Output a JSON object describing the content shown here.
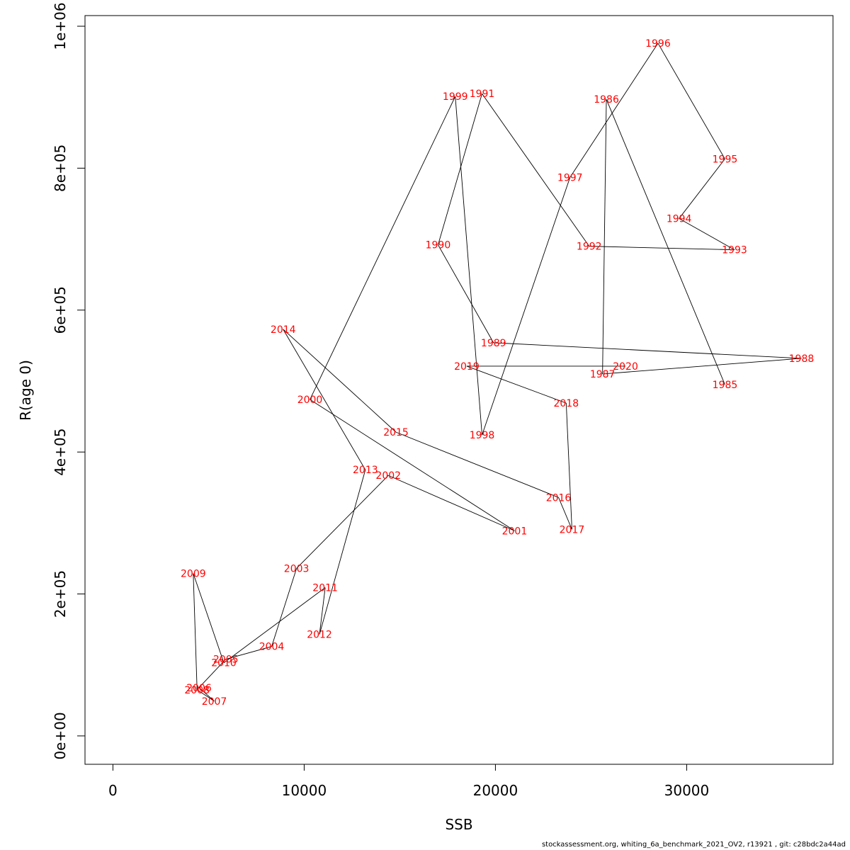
{
  "chart_data": {
    "type": "line",
    "xlabel": "SSB",
    "ylabel": "R(age 0)",
    "xlim": [
      -1460,
      37650
    ],
    "ylim": [
      -40000,
      1015000
    ],
    "xticks": [
      0,
      10000,
      20000,
      30000
    ],
    "xtick_labels": [
      "0",
      "10000",
      "20000",
      "30000"
    ],
    "yticks": [
      0,
      200000,
      400000,
      600000,
      800000,
      1000000
    ],
    "ytick_labels": [
      "0e+00",
      "2e+05",
      "4e+05",
      "6e+05",
      "8e+05",
      "1e+06"
    ],
    "grid": false,
    "line_color": "#000000",
    "label_color": "#ff0000",
    "points": [
      {
        "year": "1985",
        "x": 32000,
        "y": 495000
      },
      {
        "year": "1986",
        "x": 25800,
        "y": 897000
      },
      {
        "year": "1987",
        "x": 25600,
        "y": 510000
      },
      {
        "year": "1988",
        "x": 36000,
        "y": 532000
      },
      {
        "year": "1989",
        "x": 19900,
        "y": 554000
      },
      {
        "year": "1990",
        "x": 17000,
        "y": 692000
      },
      {
        "year": "1991",
        "x": 19300,
        "y": 905000
      },
      {
        "year": "1992",
        "x": 24900,
        "y": 690000
      },
      {
        "year": "1993",
        "x": 32500,
        "y": 685000
      },
      {
        "year": "1994",
        "x": 29600,
        "y": 729000
      },
      {
        "year": "1995",
        "x": 32000,
        "y": 813000
      },
      {
        "year": "1996",
        "x": 28500,
        "y": 976000
      },
      {
        "year": "1997",
        "x": 23900,
        "y": 787000
      },
      {
        "year": "1998",
        "x": 19300,
        "y": 424000
      },
      {
        "year": "1999",
        "x": 17900,
        "y": 901000
      },
      {
        "year": "2000",
        "x": 10300,
        "y": 474000
      },
      {
        "year": "2001",
        "x": 21000,
        "y": 289000
      },
      {
        "year": "2002",
        "x": 14400,
        "y": 367000
      },
      {
        "year": "2003",
        "x": 9600,
        "y": 236000
      },
      {
        "year": "2004",
        "x": 8300,
        "y": 126000
      },
      {
        "year": "2005",
        "x": 5900,
        "y": 108000
      },
      {
        "year": "2006",
        "x": 4500,
        "y": 68000
      },
      {
        "year": "2007",
        "x": 5300,
        "y": 49000
      },
      {
        "year": "2008",
        "x": 4400,
        "y": 65000
      },
      {
        "year": "2009",
        "x": 4200,
        "y": 229000
      },
      {
        "year": "2010",
        "x": 5800,
        "y": 103000
      },
      {
        "year": "2011",
        "x": 11100,
        "y": 209000
      },
      {
        "year": "2012",
        "x": 10800,
        "y": 143000
      },
      {
        "year": "2013",
        "x": 13200,
        "y": 375000
      },
      {
        "year": "2014",
        "x": 8900,
        "y": 573000
      },
      {
        "year": "2015",
        "x": 14800,
        "y": 428000
      },
      {
        "year": "2016",
        "x": 23300,
        "y": 336000
      },
      {
        "year": "2017",
        "x": 24000,
        "y": 291000
      },
      {
        "year": "2018",
        "x": 23700,
        "y": 469000
      },
      {
        "year": "2019",
        "x": 18500,
        "y": 521000
      },
      {
        "year": "2020",
        "x": 26800,
        "y": 521000
      }
    ]
  },
  "footer": {
    "caption": "stockassessment.org, whiting_6a_benchmark_2021_OV2, r13921 , git: c28bdc2a44ad"
  }
}
